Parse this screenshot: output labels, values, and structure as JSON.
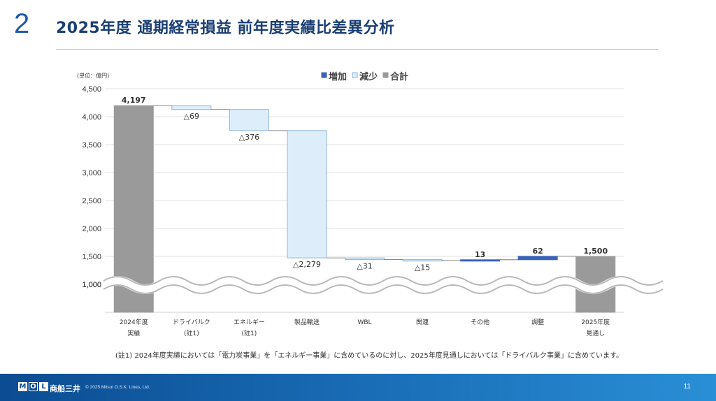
{
  "slide": {
    "number": "2",
    "title": "2025年度 通期経常損益 前年度実績比差異分析"
  },
  "footnote": "(註1) 2024年度実績においては「電力炭事業」を「エネルギー事業」に含めているのに対し、2025年度見通しにおいては「ドライバルク事業」に含めています。",
  "footer": {
    "logo_letters": [
      "M",
      "O",
      "L"
    ],
    "company": "商船三井",
    "copyright": "© 2025 Mitsui O.S.K. Lines, Ltd.",
    "page": "11"
  },
  "colors": {
    "increase": "#3a63b8",
    "decrease_fill": "#ddeefa",
    "decrease_stroke": "#8cb3d8",
    "total": "#9a9a9a",
    "title": "#1b3f73",
    "footer": "#0b4c92"
  },
  "chart_data": {
    "type": "waterfall",
    "unit_label": "(単位：億円)",
    "legend": [
      {
        "key": "increase",
        "label": "増加"
      },
      {
        "key": "decrease",
        "label": "減少"
      },
      {
        "key": "total",
        "label": "合計"
      }
    ],
    "legend_position": "top-center",
    "yticks": [
      "1,000",
      "1,500",
      "2,000",
      "2,500",
      "3,000",
      "3,500",
      "4,000",
      "4,500"
    ],
    "ytick_values": [
      1000,
      1500,
      2000,
      2500,
      3000,
      3500,
      4000,
      4500
    ],
    "ylim": [
      500,
      4500
    ],
    "axis_break": "approx 1,000 (wavy break line)",
    "grid": true,
    "categories": [
      [
        "2024年度",
        "実績"
      ],
      [
        "ドライバルク",
        "(註1)"
      ],
      [
        "エネルギー",
        "(註1)"
      ],
      [
        "製品輸送"
      ],
      [
        "WBL"
      ],
      [
        "関連"
      ],
      [
        "その他"
      ],
      [
        "調整"
      ],
      [
        "2025年度",
        "見通し"
      ]
    ],
    "values": [
      4197,
      -69,
      -376,
      -2279,
      -31,
      -15,
      13,
      62,
      1500
    ],
    "kinds": [
      "total",
      "decrease",
      "decrease",
      "decrease",
      "decrease",
      "decrease",
      "increase",
      "increase",
      "total"
    ],
    "data_labels": [
      "4,197",
      "△69",
      "△376",
      "△2,279",
      "△31",
      "△15",
      "13",
      "62",
      "1,500"
    ]
  }
}
